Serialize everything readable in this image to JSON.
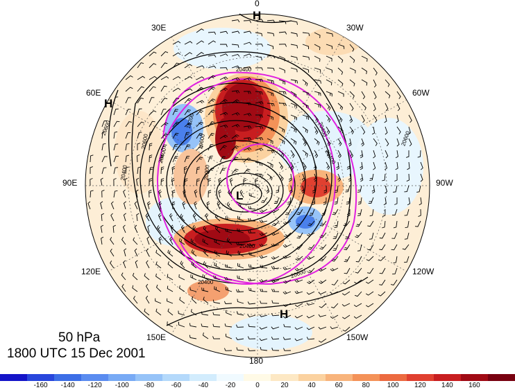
{
  "title": {
    "level": "50 hPa",
    "time": "1800 UTC 15 Dec 2001"
  },
  "longitude_labels": {
    "top": "0",
    "top_left": "30E",
    "top_right": "30W",
    "upper_left": "60E",
    "upper_right": "60W",
    "left": "90E",
    "right": "90W",
    "lower_left": "120E",
    "lower_right": "120W",
    "bottom_left": "150E",
    "bottom_right": "150W",
    "bottom": "180"
  },
  "pressure_centers": {
    "high_top": "H",
    "high_left": "H",
    "high_bottom": "H",
    "low_center": "L"
  },
  "contour_labels": [
    "20400",
    "20600",
    "20400",
    "20600",
    "20400",
    "19200",
    "19600",
    "20000",
    "20400",
    "20600",
    "20400",
    "20400",
    "20400",
    "20600"
  ],
  "colorbar": {
    "colors": [
      "#1414c8",
      "#2846dc",
      "#3c6ee6",
      "#5a8cf0",
      "#78aaf5",
      "#96c3f8",
      "#b4d9fb",
      "#d2ecfd",
      "#f0faff",
      "#fffae6",
      "#fde8c4",
      "#fbd2a0",
      "#f8b47c",
      "#f49258",
      "#ec6a40",
      "#e04030",
      "#c81e20",
      "#a00a14",
      "#780010"
    ],
    "tick_labels": [
      "-160",
      "-140",
      "-120",
      "-100",
      "-80",
      "-60",
      "-40",
      "-20",
      "0",
      "20",
      "40",
      "60",
      "80",
      "100",
      "120",
      "140",
      "160"
    ]
  },
  "colors": {
    "magenta_contour": "#e020e0",
    "height_contour": "#000000"
  }
}
